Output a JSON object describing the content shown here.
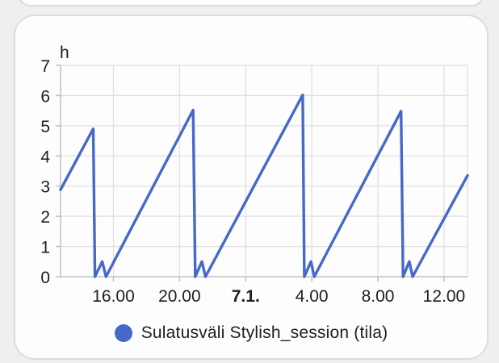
{
  "colors": {
    "accent": "#4569c9",
    "grid": "#e0e0e0",
    "axis": "#c2c2c2",
    "text": "#1e1e1e",
    "card_bg": "#fdfdfd",
    "page_bg": "#f0efef",
    "card_border": "#dcdcdc"
  },
  "legend": {
    "label": "Sulatusväli Stylish_session (tila)"
  },
  "chart_data": {
    "type": "line",
    "title": "",
    "ylabel": "h",
    "grid": true,
    "legend_position": "bottom",
    "y_axis": {
      "min": 0,
      "max": 7,
      "ticks": [
        "0",
        "1",
        "2",
        "3",
        "4",
        "5",
        "6",
        "7"
      ],
      "unit_label": "h"
    },
    "x_axis": {
      "window_hours": [
        12.8,
        37.42
      ],
      "ticks": [
        {
          "t": 16,
          "label": "16.00",
          "bold": false
        },
        {
          "t": 20,
          "label": "20.00",
          "bold": false
        },
        {
          "t": 24,
          "label": "7.1.",
          "bold": true
        },
        {
          "t": 28,
          "label": "4.00",
          "bold": false
        },
        {
          "t": 32,
          "label": "8.00",
          "bold": false
        },
        {
          "t": 36,
          "label": "12.00",
          "bold": false
        }
      ]
    },
    "series": [
      {
        "name": "Sulatusväli Stylish_session (tila)",
        "color": "#4569c9",
        "points": [
          [
            12.8,
            2.88
          ],
          [
            14.78,
            4.9
          ],
          [
            14.88,
            0.0
          ],
          [
            15.32,
            0.5
          ],
          [
            15.55,
            0.0
          ],
          [
            20.82,
            5.52
          ],
          [
            20.95,
            0.0
          ],
          [
            21.35,
            0.5
          ],
          [
            21.57,
            0.0
          ],
          [
            27.45,
            6.02
          ],
          [
            27.55,
            0.0
          ],
          [
            27.95,
            0.5
          ],
          [
            28.15,
            0.0
          ],
          [
            33.4,
            5.48
          ],
          [
            33.52,
            0.0
          ],
          [
            33.9,
            0.5
          ],
          [
            34.1,
            0.0
          ],
          [
            37.42,
            3.35
          ]
        ]
      }
    ]
  }
}
